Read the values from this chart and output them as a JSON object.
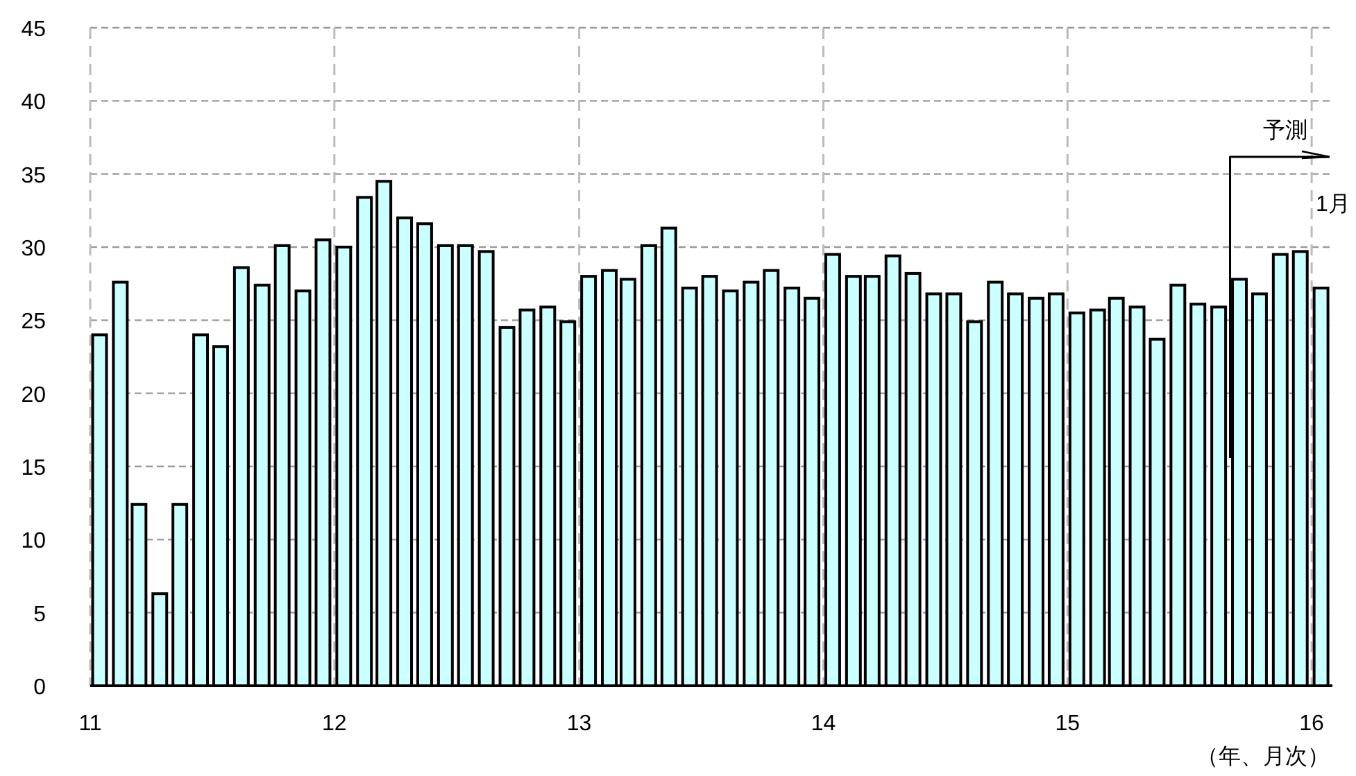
{
  "chart_data": {
    "type": "bar",
    "xlabel": "（年、月次）",
    "x": [
      "2011-01-15",
      "2011-02-15",
      "2011-03-15",
      "2011-04-15",
      "2011-05-15",
      "2011-06-15",
      "2011-07-15",
      "2011-08-15",
      "2011-09-15",
      "2011-10-15",
      "2011-11-15",
      "2011-12-15",
      "2012-01-15",
      "2012-02-15",
      "2012-03-15",
      "2012-04-15",
      "2012-05-15",
      "2012-06-15",
      "2012-07-15",
      "2012-08-15",
      "2012-09-15",
      "2012-10-15",
      "2012-11-15",
      "2012-12-15",
      "2013-01-15",
      "2013-02-15",
      "2013-03-15",
      "2013-04-15",
      "2013-05-15",
      "2013-06-15",
      "2013-07-15",
      "2013-08-15",
      "2013-09-15",
      "2013-10-15",
      "2013-11-15",
      "2013-12-15",
      "2014-01-15",
      "2014-02-15",
      "2014-03-15",
      "2014-04-15",
      "2014-05-15",
      "2014-06-15",
      "2014-07-15",
      "2014-08-15",
      "2014-09-15",
      "2014-10-15",
      "2014-11-15",
      "2014-12-15",
      "2015-01-15",
      "2015-02-15",
      "2015-03-15",
      "2015-04-15",
      "2015-05-15",
      "2015-06-15",
      "2015-07-15",
      "2015-08-15",
      "2015-09-15",
      "2015-10-15",
      "2015-11-15",
      "2015-12-15",
      "2016-01-15"
    ],
    "values": [
      24,
      27.6,
      12.4,
      6.3,
      12.4,
      24,
      23.2,
      28.6,
      27.4,
      30.1,
      27,
      30.5,
      30,
      33.4,
      34.5,
      32,
      31.6,
      30.1,
      30.1,
      29.7,
      24.5,
      25.7,
      25.9,
      24.9,
      28,
      28.4,
      27.8,
      30.1,
      31.3,
      27.2,
      28,
      27,
      27.6,
      28.4,
      27.2,
      26.5,
      29.5,
      28,
      28,
      29.4,
      28.2,
      26.8,
      26.8,
      24.9,
      27.6,
      26.8,
      26.5,
      26.8,
      25.5,
      25.7,
      26.5,
      25.9,
      23.7,
      27.4,
      26.1,
      25.9,
      27.8,
      26.8,
      29.5,
      29.7,
      27.2
    ],
    "color": "#ccffff",
    "xlim": [
      "2011-01-01",
      "2016-02-01"
    ],
    "xticks": [
      {
        "value": "2011-01-01",
        "label": "11"
      },
      {
        "value": "2012-01-01",
        "label": "12"
      },
      {
        "value": "2013-01-01",
        "label": "13"
      },
      {
        "value": "2014-01-01",
        "label": "14"
      },
      {
        "value": "2015-01-01",
        "label": "15"
      },
      {
        "value": "2016-01-01",
        "label": "16"
      }
    ],
    "ylim": [
      0,
      45
    ],
    "yticks": [
      0,
      5,
      10,
      15,
      20,
      25,
      30,
      35,
      40,
      45
    ],
    "grid": true,
    "ref_lines": [
      {
        "axis": "x",
        "value": "2015-09-01",
        "label": "予測"
      }
    ],
    "annotations": [
      "1月"
    ]
  }
}
